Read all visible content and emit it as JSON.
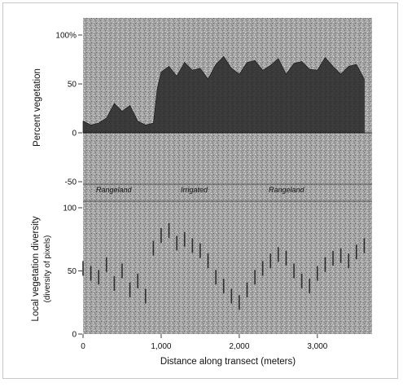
{
  "chart_data": [
    {
      "type": "area",
      "panel": "top",
      "ylabel": "Percent vegetation",
      "ylim": [
        -60,
        110
      ],
      "ytick_labels": [
        "100%",
        "50",
        "0",
        "-50"
      ],
      "xlim": [
        0,
        3700
      ],
      "grid": false,
      "x": [
        0,
        100,
        200,
        300,
        400,
        500,
        600,
        700,
        800,
        900,
        950,
        1000,
        1100,
        1200,
        1300,
        1400,
        1500,
        1600,
        1700,
        1800,
        1900,
        2000,
        2100,
        2200,
        2300,
        2400,
        2500,
        2600,
        2700,
        2800,
        2900,
        3000,
        3100,
        3200,
        3300,
        3400,
        3500,
        3600
      ],
      "values": [
        12,
        8,
        10,
        15,
        30,
        22,
        28,
        12,
        8,
        10,
        45,
        62,
        68,
        58,
        72,
        64,
        66,
        55,
        70,
        78,
        66,
        60,
        72,
        74,
        64,
        69,
        76,
        60,
        71,
        73,
        65,
        64,
        77,
        68,
        60,
        68,
        70,
        55
      ],
      "annotations": [
        "Rangeland",
        "Irrigated",
        "Rangeland"
      ]
    },
    {
      "type": "scatter",
      "panel": "bottom",
      "ylabel": "Local vegetation diversity",
      "ylabel_sub": "(diversity of pixels)",
      "ylim": [
        0,
        110
      ],
      "ytick_labels": [
        "100",
        "50",
        "0"
      ],
      "xlabel": "Distance along transect (meters)",
      "xlim": [
        0,
        3700
      ],
      "xtick_labels": [
        "0",
        "1,000",
        "2,000",
        "3,000"
      ],
      "grid": false,
      "x": [
        0,
        100,
        200,
        300,
        400,
        500,
        600,
        700,
        800,
        900,
        1000,
        1100,
        1200,
        1300,
        1400,
        1500,
        1600,
        1700,
        1800,
        1900,
        2000,
        2100,
        2200,
        2300,
        2400,
        2500,
        2600,
        2700,
        2800,
        2900,
        3000,
        3100,
        3200,
        3300,
        3400,
        3500,
        3600
      ],
      "values": [
        52,
        48,
        45,
        55,
        40,
        50,
        35,
        42,
        30,
        68,
        78,
        82,
        72,
        75,
        70,
        66,
        58,
        45,
        38,
        30,
        25,
        35,
        45,
        52,
        58,
        63,
        60,
        50,
        42,
        38,
        48,
        55,
        60,
        62,
        58,
        65,
        70
      ]
    }
  ],
  "colors": {
    "plot_fill": "#a3a3a3",
    "vegetation_dark": "#202020",
    "marks": "#2e2e2e",
    "text": "#111111",
    "frame": "#c8c8c8"
  }
}
